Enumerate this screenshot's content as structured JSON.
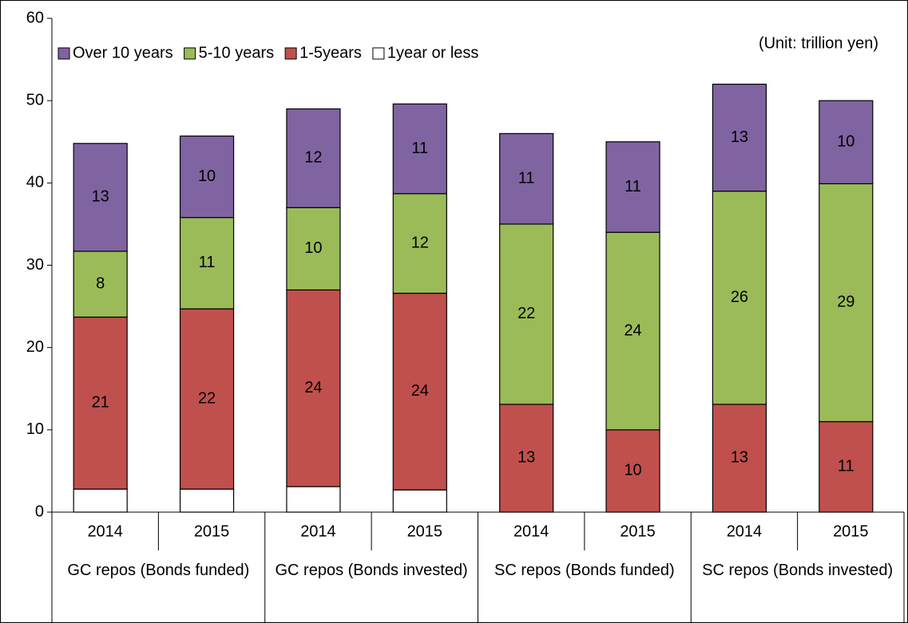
{
  "chart_data": {
    "type": "stacked_bar",
    "annotation": "(Unit: trillion yen)",
    "categories": [
      "2014",
      "2015",
      "2014",
      "2015",
      "2014",
      "2015",
      "2014",
      "2015"
    ],
    "groups": [
      "GC repos (Bonds funded)",
      "GC repos (Bonds invested)",
      "SC repos (Bonds funded)",
      "SC repos (Bonds invested)"
    ],
    "series": [
      {
        "name": "1year or less",
        "color": "#ffffff",
        "values": [
          2.8,
          2.8,
          3.1,
          2.7,
          0,
          0,
          0,
          0
        ]
      },
      {
        "name": "1-5years",
        "color": "#c0504d",
        "values": [
          20.9,
          21.9,
          23.9,
          23.9,
          13.1,
          10.0,
          13.1,
          11.0
        ],
        "value_labels": [
          "21",
          "22",
          "24",
          "24",
          "13",
          "10",
          "13",
          "11"
        ]
      },
      {
        "name": "5-10 years",
        "color": "#9bbb59",
        "values": [
          8.0,
          11.1,
          10.0,
          12.1,
          21.9,
          24.0,
          25.9,
          28.9
        ],
        "value_labels": [
          "8",
          "11",
          "10",
          "12",
          "22",
          "24",
          "26",
          "29"
        ]
      },
      {
        "name": "Over 10 years",
        "color": "#8064a2",
        "values": [
          13.1,
          9.9,
          12.0,
          10.9,
          11.0,
          11.0,
          13.0,
          10.1
        ],
        "value_labels": [
          "13",
          "10",
          "12",
          "11",
          "11",
          "11",
          "13",
          "10"
        ]
      }
    ],
    "ylim": [
      0,
      60
    ],
    "yticks": [
      0,
      10,
      20,
      30,
      40,
      50,
      60
    ],
    "legend": "top-left"
  }
}
